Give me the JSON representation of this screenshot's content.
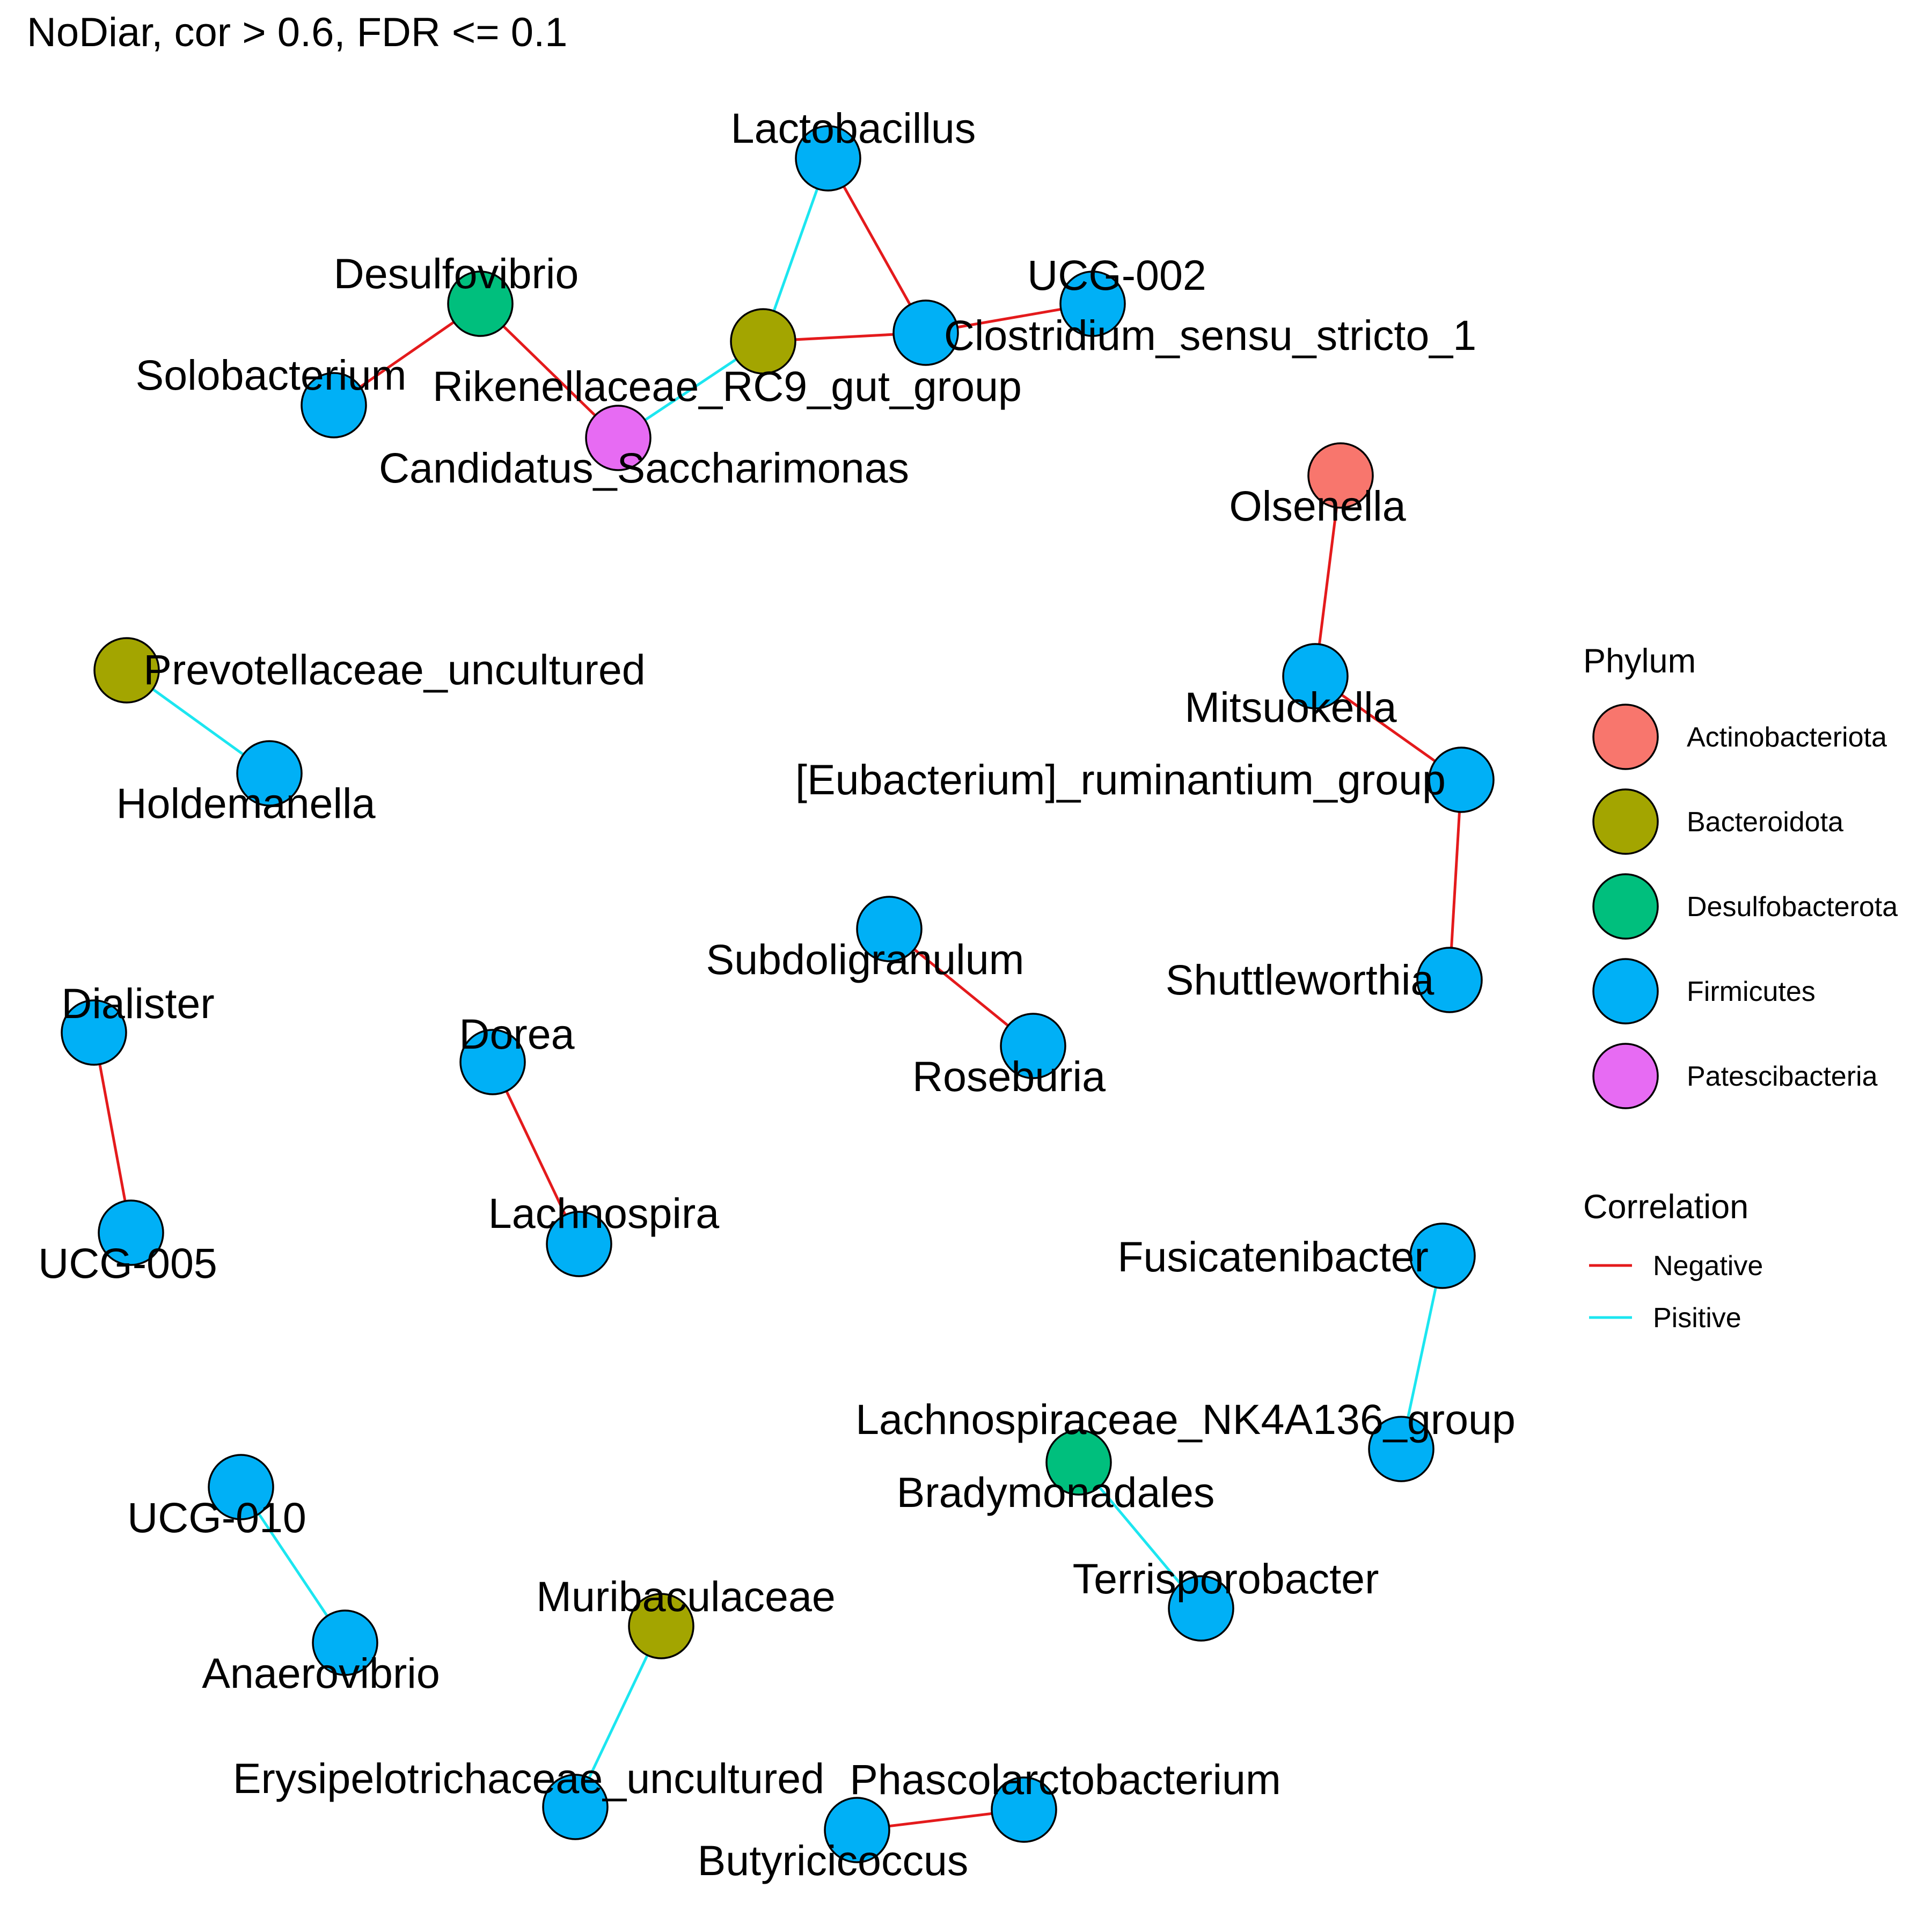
{
  "title": "NoDiar, cor > 0.6, FDR <= 0.1",
  "legend": {
    "phylum": {
      "title": "Phylum",
      "items": [
        {
          "name": "Actinobacteriota",
          "color": "#F8766D"
        },
        {
          "name": "Bacteroidota",
          "color": "#A3A500"
        },
        {
          "name": "Desulfobacterota",
          "color": "#00BF7D"
        },
        {
          "name": "Firmicutes",
          "color": "#00B0F6"
        },
        {
          "name": "Patescibacteria",
          "color": "#E76BF3"
        }
      ]
    },
    "correlation": {
      "title": "Correlation",
      "items": [
        {
          "name": "Negative",
          "color": "#E41A1C"
        },
        {
          "name": "Pisitive",
          "color": "#1CE6F0"
        }
      ]
    }
  },
  "nodes": [
    {
      "id": "Lactobacillus",
      "phylum": "Firmicutes"
    },
    {
      "id": "UCG-002",
      "phylum": "Firmicutes"
    },
    {
      "id": "Clostridium_sensu_stricto_1",
      "phylum": "Firmicutes"
    },
    {
      "id": "Rikenellaceae_RC9_gut_group",
      "phylum": "Bacteroidota"
    },
    {
      "id": "Desulfovibrio",
      "phylum": "Desulfobacterota"
    },
    {
      "id": "Solobacterium",
      "phylum": "Firmicutes"
    },
    {
      "id": "Candidatus_Saccharimonas",
      "phylum": "Patescibacteria"
    },
    {
      "id": "Olsenella",
      "phylum": "Actinobacteriota"
    },
    {
      "id": "Mitsuokella",
      "phylum": "Firmicutes"
    },
    {
      "id": "[Eubacterium]_ruminantium_group",
      "phylum": "Firmicutes"
    },
    {
      "id": "Shuttleworthia",
      "phylum": "Firmicutes"
    },
    {
      "id": "Prevotellaceae_uncultured",
      "phylum": "Bacteroidota"
    },
    {
      "id": "Holdemanella",
      "phylum": "Firmicutes"
    },
    {
      "id": "Subdoligranulum",
      "phylum": "Firmicutes"
    },
    {
      "id": "Roseburia",
      "phylum": "Firmicutes"
    },
    {
      "id": "Dialister",
      "phylum": "Firmicutes"
    },
    {
      "id": "UCG-005",
      "phylum": "Firmicutes"
    },
    {
      "id": "Dorea",
      "phylum": "Firmicutes"
    },
    {
      "id": "Lachnospira",
      "phylum": "Firmicutes"
    },
    {
      "id": "Fusicatenibacter",
      "phylum": "Firmicutes"
    },
    {
      "id": "Lachnospiraceae_NK4A136_group",
      "phylum": "Firmicutes"
    },
    {
      "id": "Bradymonadales",
      "phylum": "Desulfobacterota"
    },
    {
      "id": "Terrisporobacter",
      "phylum": "Firmicutes"
    },
    {
      "id": "UCG-010",
      "phylum": "Firmicutes"
    },
    {
      "id": "Anaerovibrio",
      "phylum": "Firmicutes"
    },
    {
      "id": "Muribaculaceae",
      "phylum": "Bacteroidota"
    },
    {
      "id": "Erysipelotrichaceae_uncultured",
      "phylum": "Firmicutes"
    },
    {
      "id": "Phascolarctobacterium",
      "phylum": "Firmicutes"
    },
    {
      "id": "Butyricicoccus",
      "phylum": "Firmicutes"
    }
  ],
  "edges": [
    {
      "source": "Lactobacillus",
      "target": "Rikenellaceae_RC9_gut_group",
      "correlation": "Pisitive"
    },
    {
      "source": "Lactobacillus",
      "target": "Clostridium_sensu_stricto_1",
      "correlation": "Negative"
    },
    {
      "source": "Rikenellaceae_RC9_gut_group",
      "target": "Clostridium_sensu_stricto_1",
      "correlation": "Negative"
    },
    {
      "source": "Clostridium_sensu_stricto_1",
      "target": "UCG-002",
      "correlation": "Negative"
    },
    {
      "source": "Rikenellaceae_RC9_gut_group",
      "target": "Candidatus_Saccharimonas",
      "correlation": "Pisitive"
    },
    {
      "source": "Desulfovibrio",
      "target": "Candidatus_Saccharimonas",
      "correlation": "Negative"
    },
    {
      "source": "Desulfovibrio",
      "target": "Solobacterium",
      "correlation": "Negative"
    },
    {
      "source": "Olsenella",
      "target": "Mitsuokella",
      "correlation": "Negative"
    },
    {
      "source": "Mitsuokella",
      "target": "[Eubacterium]_ruminantium_group",
      "correlation": "Negative"
    },
    {
      "source": "[Eubacterium]_ruminantium_group",
      "target": "Shuttleworthia",
      "correlation": "Negative"
    },
    {
      "source": "Prevotellaceae_uncultured",
      "target": "Holdemanella",
      "correlation": "Pisitive"
    },
    {
      "source": "Subdoligranulum",
      "target": "Roseburia",
      "correlation": "Negative"
    },
    {
      "source": "Dialister",
      "target": "UCG-005",
      "correlation": "Negative"
    },
    {
      "source": "Dorea",
      "target": "Lachnospira",
      "correlation": "Negative"
    },
    {
      "source": "Fusicatenibacter",
      "target": "Lachnospiraceae_NK4A136_group",
      "correlation": "Pisitive"
    },
    {
      "source": "Bradymonadales",
      "target": "Terrisporobacter",
      "correlation": "Pisitive"
    },
    {
      "source": "UCG-010",
      "target": "Anaerovibrio",
      "correlation": "Pisitive"
    },
    {
      "source": "Muribaculaceae",
      "target": "Erysipelotrichaceae_uncultured",
      "correlation": "Pisitive"
    },
    {
      "source": "Butyricicoccus",
      "target": "Phascolarctobacterium",
      "correlation": "Negative"
    }
  ]
}
